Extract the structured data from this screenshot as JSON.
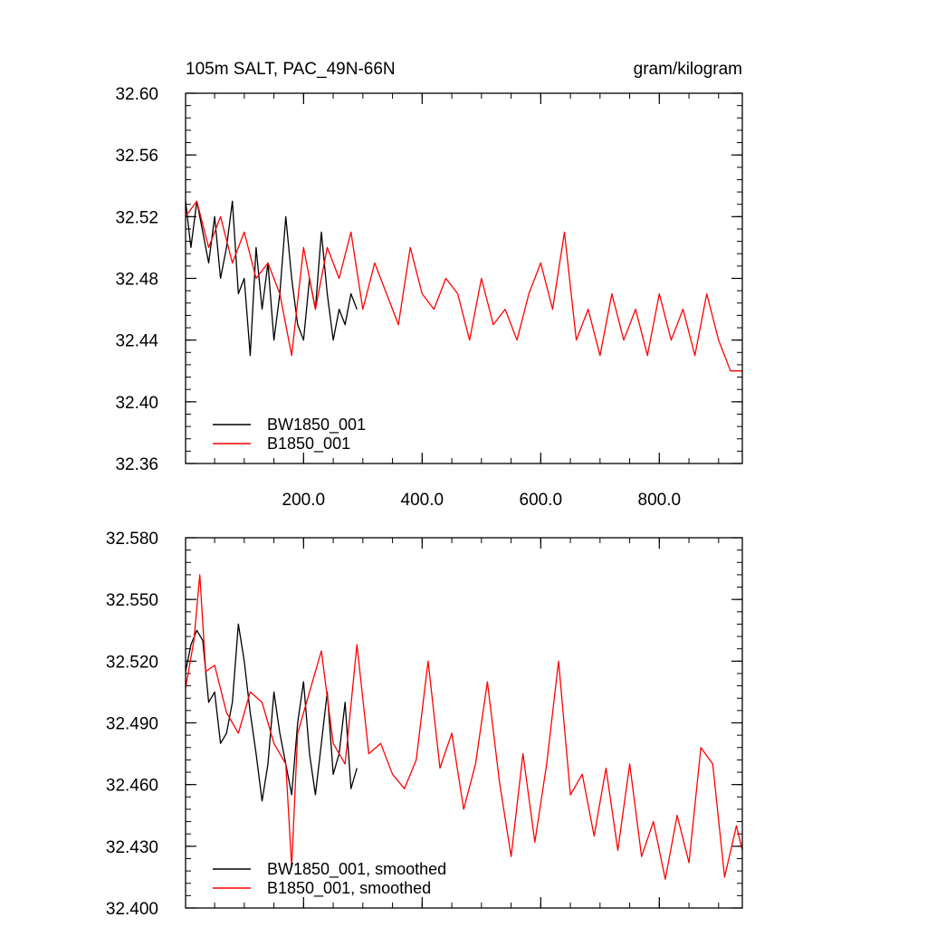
{
  "figure": {
    "title_left": "105m SALT, PAC_49N-66N",
    "title_right": "gram/kilogram"
  },
  "chart_data": [
    {
      "type": "line",
      "title": "105m SALT, PAC_49N-66N",
      "units": "gram/kilogram",
      "xlim": [
        1,
        940
      ],
      "ylim": [
        32.36,
        32.6
      ],
      "x_ticks": [
        200,
        400,
        600,
        800
      ],
      "x_tick_labels": [
        "200.0",
        "400.0",
        "600.0",
        "800.0"
      ],
      "y_ticks": [
        32.36,
        32.4,
        32.44,
        32.48,
        32.52,
        32.56,
        32.6
      ],
      "y_tick_labels": [
        "32.36",
        "32.40",
        "32.44",
        "32.48",
        "32.52",
        "32.56",
        "32.60"
      ],
      "legend_position": "bottom-left",
      "series": [
        {
          "name": "BW1850_001",
          "color": "#000000",
          "x": [
            1,
            10,
            20,
            30,
            40,
            50,
            60,
            70,
            80,
            90,
            100,
            110,
            120,
            130,
            140,
            150,
            160,
            170,
            180,
            190,
            200,
            210,
            220,
            230,
            240,
            250,
            260,
            270,
            280,
            290
          ],
          "values": [
            32.53,
            32.5,
            32.53,
            32.51,
            32.49,
            32.52,
            32.48,
            32.5,
            32.53,
            32.47,
            32.48,
            32.43,
            32.5,
            32.46,
            32.49,
            32.44,
            32.47,
            32.52,
            32.48,
            32.45,
            32.44,
            32.48,
            32.46,
            32.51,
            32.47,
            32.44,
            32.46,
            32.45,
            32.47,
            32.46
          ]
        },
        {
          "name": "B1850_001",
          "color": "#ff0000",
          "x": [
            1,
            20,
            40,
            60,
            80,
            100,
            120,
            140,
            160,
            180,
            200,
            220,
            240,
            260,
            280,
            300,
            320,
            340,
            360,
            380,
            400,
            420,
            440,
            460,
            480,
            500,
            520,
            540,
            560,
            580,
            600,
            620,
            640,
            660,
            680,
            700,
            720,
            740,
            760,
            780,
            800,
            820,
            840,
            860,
            880,
            900,
            920,
            940
          ],
          "values": [
            32.52,
            32.53,
            32.5,
            32.52,
            32.49,
            32.51,
            32.48,
            32.49,
            32.47,
            32.43,
            32.5,
            32.46,
            32.5,
            32.48,
            32.51,
            32.46,
            32.49,
            32.47,
            32.45,
            32.5,
            32.47,
            32.46,
            32.48,
            32.47,
            32.44,
            32.48,
            32.45,
            32.46,
            32.44,
            32.47,
            32.49,
            32.46,
            32.51,
            32.44,
            32.46,
            32.43,
            32.47,
            32.44,
            32.46,
            32.43,
            32.47,
            32.44,
            32.46,
            32.43,
            32.47,
            32.44,
            32.42,
            32.42
          ]
        }
      ]
    },
    {
      "type": "line",
      "xlim": [
        1,
        940
      ],
      "ylim": [
        32.4,
        32.58
      ],
      "y_ticks": [
        32.4,
        32.43,
        32.46,
        32.49,
        32.52,
        32.55,
        32.58
      ],
      "y_tick_labels": [
        "32.400",
        "32.430",
        "32.460",
        "32.490",
        "32.520",
        "32.550",
        "32.580"
      ],
      "legend_position": "bottom-left",
      "series": [
        {
          "name": "BW1850_001, smoothed",
          "color": "#000000",
          "x": [
            1,
            10,
            20,
            30,
            40,
            50,
            60,
            70,
            80,
            90,
            100,
            110,
            120,
            130,
            140,
            150,
            160,
            170,
            180,
            190,
            200,
            210,
            220,
            230,
            240,
            250,
            260,
            270,
            280,
            290
          ],
          "values": [
            32.515,
            32.528,
            32.535,
            32.53,
            32.5,
            32.505,
            32.48,
            32.485,
            32.5,
            32.538,
            32.52,
            32.495,
            32.475,
            32.452,
            32.47,
            32.505,
            32.485,
            32.47,
            32.455,
            32.49,
            32.51,
            32.475,
            32.455,
            32.48,
            32.505,
            32.465,
            32.475,
            32.5,
            32.458,
            32.468
          ]
        },
        {
          "name": "B1850_001, smoothed",
          "color": "#ff0000",
          "x": [
            1,
            15,
            25,
            35,
            50,
            70,
            90,
            110,
            130,
            150,
            170,
            180,
            190,
            210,
            230,
            250,
            270,
            290,
            310,
            330,
            350,
            370,
            390,
            410,
            430,
            450,
            470,
            490,
            510,
            530,
            550,
            570,
            590,
            610,
            630,
            650,
            670,
            690,
            710,
            730,
            750,
            770,
            790,
            810,
            830,
            850,
            870,
            890,
            910,
            930,
            940
          ],
          "values": [
            32.507,
            32.53,
            32.562,
            32.515,
            32.518,
            32.495,
            32.485,
            32.505,
            32.5,
            32.48,
            32.47,
            32.42,
            32.485,
            32.505,
            32.525,
            32.48,
            32.47,
            32.528,
            32.475,
            32.48,
            32.465,
            32.458,
            32.472,
            32.52,
            32.468,
            32.485,
            32.448,
            32.47,
            32.51,
            32.462,
            32.425,
            32.475,
            32.432,
            32.47,
            32.52,
            32.455,
            32.465,
            32.435,
            32.468,
            32.428,
            32.47,
            32.425,
            32.442,
            32.414,
            32.445,
            32.422,
            32.478,
            32.47,
            32.415,
            32.44,
            32.428
          ]
        }
      ]
    }
  ]
}
